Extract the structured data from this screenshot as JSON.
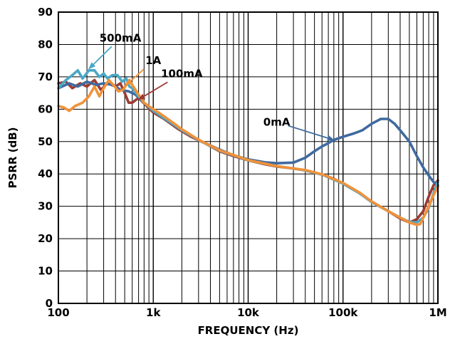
{
  "chart_data": {
    "type": "line",
    "xlabel": "FREQUENCY (Hz)",
    "ylabel": "PSRR (dB)",
    "xscale": "log",
    "xlim": [
      100,
      1000000
    ],
    "ylim": [
      0,
      90
    ],
    "grid": true,
    "x_ticks": [
      {
        "value": 100,
        "label": "100"
      },
      {
        "value": 1000,
        "label": "1k"
      },
      {
        "value": 10000,
        "label": "10k"
      },
      {
        "value": 100000,
        "label": "100k"
      },
      {
        "value": 1000000,
        "label": "1M"
      }
    ],
    "y_ticks": [
      {
        "value": 0,
        "label": "0"
      },
      {
        "value": 10,
        "label": "10"
      },
      {
        "value": 20,
        "label": "20"
      },
      {
        "value": 30,
        "label": "30"
      },
      {
        "value": 40,
        "label": "40"
      },
      {
        "value": 50,
        "label": "50"
      },
      {
        "value": 60,
        "label": "60"
      },
      {
        "value": 70,
        "label": "70"
      },
      {
        "value": 80,
        "label": "80"
      },
      {
        "value": 90,
        "label": "90"
      }
    ],
    "series": [
      {
        "name": "100mA",
        "color": "#9c3a32",
        "points": [
          [
            100,
            68
          ],
          [
            120,
            68.5
          ],
          [
            140,
            66.5
          ],
          [
            170,
            68
          ],
          [
            200,
            67
          ],
          [
            240,
            69
          ],
          [
            280,
            66
          ],
          [
            330,
            68
          ],
          [
            400,
            67
          ],
          [
            450,
            68
          ],
          [
            500,
            65
          ],
          [
            550,
            62
          ],
          [
            600,
            62
          ],
          [
            700,
            63.5
          ],
          [
            850,
            61
          ],
          [
            1000,
            59
          ],
          [
            1300,
            57
          ],
          [
            1800,
            54
          ],
          [
            2500,
            51.5
          ],
          [
            3500,
            49.5
          ],
          [
            5000,
            47
          ],
          [
            7000,
            45.5
          ],
          [
            10000,
            44.2
          ],
          [
            15000,
            43
          ],
          [
            20000,
            42.3
          ],
          [
            30000,
            41.7
          ],
          [
            40000,
            41.1
          ],
          [
            60000,
            39.8
          ],
          [
            80000,
            38.5
          ],
          [
            100000,
            37
          ],
          [
            150000,
            34
          ],
          [
            200000,
            31.5
          ],
          [
            300000,
            28.5
          ],
          [
            400000,
            26.2
          ],
          [
            500000,
            25
          ],
          [
            600000,
            26
          ],
          [
            700000,
            28.5
          ],
          [
            800000,
            33
          ],
          [
            900000,
            36.5
          ],
          [
            1000000,
            38
          ]
        ]
      },
      {
        "name": "0mA",
        "color": "#3f6a9e",
        "points": [
          [
            100,
            66.5
          ],
          [
            130,
            68
          ],
          [
            160,
            67
          ],
          [
            200,
            68.5
          ],
          [
            250,
            67.5
          ],
          [
            300,
            68
          ],
          [
            380,
            67.5
          ],
          [
            450,
            66
          ],
          [
            550,
            65.5
          ],
          [
            650,
            64.5
          ],
          [
            800,
            62
          ],
          [
            1000,
            59.5
          ],
          [
            1500,
            56
          ],
          [
            2000,
            53.5
          ],
          [
            3000,
            50.5
          ],
          [
            5000,
            47.5
          ],
          [
            7000,
            45.8
          ],
          [
            10000,
            44.5
          ],
          [
            15000,
            43.6
          ],
          [
            20000,
            43.3
          ],
          [
            30000,
            43.5
          ],
          [
            40000,
            45
          ],
          [
            50000,
            47
          ],
          [
            60000,
            48.5
          ],
          [
            70000,
            49.5
          ],
          [
            80000,
            50.5
          ],
          [
            100000,
            51.5
          ],
          [
            130000,
            52.5
          ],
          [
            160000,
            53.5
          ],
          [
            200000,
            55.5
          ],
          [
            250000,
            57
          ],
          [
            300000,
            57
          ],
          [
            350000,
            55.5
          ],
          [
            400000,
            53.5
          ],
          [
            500000,
            50
          ],
          [
            600000,
            45.5
          ],
          [
            700000,
            42
          ],
          [
            800000,
            39.5
          ],
          [
            900000,
            37.5
          ],
          [
            1000000,
            36.5
          ]
        ]
      },
      {
        "name": "500mA",
        "color": "#4aa7c6",
        "points": [
          [
            100,
            66.5
          ],
          [
            120,
            69
          ],
          [
            140,
            70.5
          ],
          [
            160,
            72
          ],
          [
            180,
            69.5
          ],
          [
            210,
            72
          ],
          [
            240,
            72
          ],
          [
            270,
            70
          ],
          [
            300,
            71
          ],
          [
            330,
            69.5
          ],
          [
            370,
            70.5
          ],
          [
            420,
            70.5
          ],
          [
            470,
            68.5
          ],
          [
            520,
            69.5
          ],
          [
            560,
            67
          ],
          [
            600,
            66.5
          ],
          [
            700,
            64
          ],
          [
            800,
            62
          ],
          [
            1000,
            59.5
          ],
          [
            1500,
            56
          ],
          [
            2000,
            53.5
          ],
          [
            3000,
            50.5
          ],
          [
            5000,
            47.2
          ],
          [
            10000,
            44.2
          ],
          [
            20000,
            42.4
          ],
          [
            40000,
            41.1
          ],
          [
            60000,
            39.8
          ],
          [
            100000,
            37
          ],
          [
            150000,
            34
          ],
          [
            200000,
            31.3
          ],
          [
            300000,
            28.5
          ],
          [
            400000,
            26.5
          ],
          [
            500000,
            25.2
          ],
          [
            600000,
            25
          ],
          [
            700000,
            26.5
          ],
          [
            800000,
            29.5
          ],
          [
            900000,
            34
          ],
          [
            1000000,
            37.5
          ]
        ]
      },
      {
        "name": "1A",
        "color": "#f0923a",
        "points": [
          [
            100,
            61
          ],
          [
            115,
            60.5
          ],
          [
            130,
            59.5
          ],
          [
            150,
            61
          ],
          [
            180,
            62
          ],
          [
            210,
            64
          ],
          [
            240,
            67
          ],
          [
            270,
            64
          ],
          [
            300,
            66.5
          ],
          [
            340,
            69
          ],
          [
            380,
            67.5
          ],
          [
            430,
            65.5
          ],
          [
            480,
            66
          ],
          [
            520,
            67.5
          ],
          [
            560,
            69
          ],
          [
            600,
            67.5
          ],
          [
            650,
            66
          ],
          [
            700,
            64.5
          ],
          [
            800,
            62
          ],
          [
            1000,
            60
          ],
          [
            1200,
            58.5
          ],
          [
            1500,
            56.5
          ],
          [
            2000,
            53.8
          ],
          [
            3000,
            50.6
          ],
          [
            5000,
            47.3
          ],
          [
            10000,
            44.3
          ],
          [
            20000,
            42.4
          ],
          [
            40000,
            41.2
          ],
          [
            60000,
            39.9
          ],
          [
            100000,
            37.2
          ],
          [
            150000,
            34.2
          ],
          [
            200000,
            31.5
          ],
          [
            300000,
            28.5
          ],
          [
            400000,
            26.5
          ],
          [
            500000,
            25
          ],
          [
            600000,
            24.3
          ],
          [
            650000,
            24.5
          ],
          [
            700000,
            26.5
          ],
          [
            800000,
            30
          ],
          [
            900000,
            33.5
          ],
          [
            1000000,
            36
          ]
        ]
      }
    ],
    "annotations": [
      {
        "text": "500mA",
        "series": "500mA",
        "at": [
          210,
          72.5
        ],
        "label_at": [
          450,
          82
        ]
      },
      {
        "text": "1A",
        "series": "1A",
        "at": [
          520,
          67.5
        ],
        "label_at": [
          1000,
          75
        ]
      },
      {
        "text": "100mA",
        "series": "100mA",
        "at": [
          700,
          63
        ],
        "label_at": [
          2000,
          71
        ]
      },
      {
        "text": "0mA",
        "series": "0mA",
        "at": [
          80000,
          50.5
        ],
        "label_at": [
          20000,
          56
        ]
      }
    ]
  }
}
